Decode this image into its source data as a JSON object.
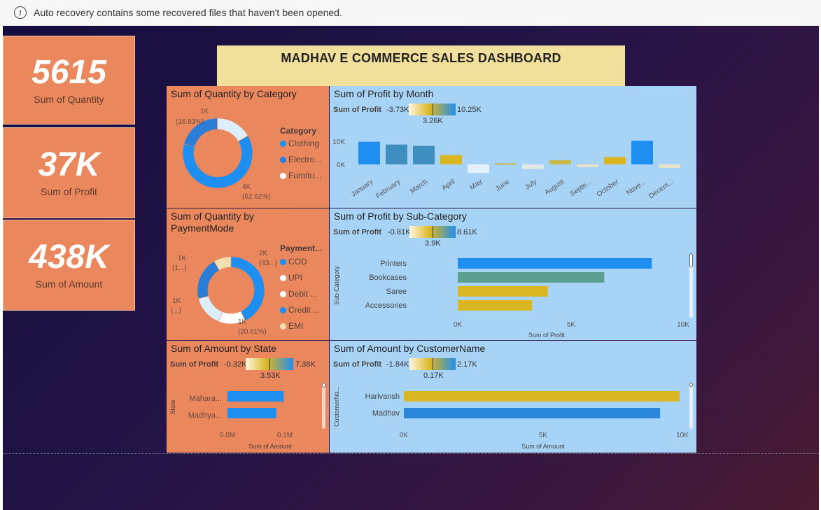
{
  "infobar": {
    "icon": "info-icon",
    "message": "Auto recovery contains some recovered files that haven't been opened."
  },
  "kpis": [
    {
      "value": "5615",
      "label": "Sum of Quantity"
    },
    {
      "value": "37K",
      "label": "Sum of Profit"
    },
    {
      "value": "438K",
      "label": "Sum of Amount"
    }
  ],
  "dashboard_title": "MADHAV E COMMERCE SALES DASHBOARD",
  "colors": {
    "blue": "#1f8ef1",
    "lightblue": "#ddeefb",
    "teal": "#4a9a8a",
    "gold": "#d9b622",
    "orange": "#ea875d"
  },
  "qty_category": {
    "title": "Sum of Quantity by Category",
    "legend_title": "Category",
    "legend": [
      "Clothing",
      "Electro...",
      "Furnitu..."
    ],
    "labels": {
      "top_value": "1K",
      "top_pct": "(16.83%)",
      "bottom_value": "4K",
      "bottom_pct": "(62.62%)"
    }
  },
  "qty_payment": {
    "title_line1": "Sum of Quantity by",
    "title_line2": "PaymentMode",
    "legend_title": "Payment...",
    "legend": [
      "COD",
      "UPI",
      "Debit ...",
      "Credit ...",
      "EMI"
    ],
    "labels": {
      "a_value": "2K",
      "a_pct": "(43...)",
      "b_value": "1K",
      "b_pct": "(1...)",
      "c_value": "1K",
      "c_pct": "(...)",
      "d_value": "1K",
      "d_pct": "(20.61%)"
    }
  },
  "amount_state": {
    "title": "Sum of Amount by State",
    "grad": {
      "label": "Sum of Profit",
      "min": "-0.32K",
      "max": "7.38K",
      "mid": "3.53K"
    },
    "yaxis_title": "State",
    "xaxis_title": "Sum of Amount",
    "categories": [
      "Mahara...",
      "Madhya..."
    ],
    "ticks": [
      "0.0M",
      "0.1M"
    ]
  },
  "profit_month": {
    "title": "Sum of Profit by Month",
    "grad": {
      "label": "Sum of Profit",
      "min": "-3.73K",
      "max": "10.25K",
      "mid": "3.26K"
    },
    "yticks": [
      "10K",
      "0K"
    ],
    "months": [
      "January",
      "February",
      "March",
      "April",
      "May",
      "June",
      "July",
      "August",
      "Septe...",
      "October",
      "Nove...",
      "Decem..."
    ]
  },
  "profit_subcat": {
    "title": "Sum of Profit by Sub-Category",
    "grad": {
      "label": "Sum of Profit",
      "min": "-0.81K",
      "max": "8.61K",
      "mid": "3.9K"
    },
    "yaxis_title": "Sub-Category",
    "xaxis_title": "Sum of Profit",
    "categories": [
      "Printers",
      "Bookcases",
      "Saree",
      "Accessories"
    ],
    "ticks": [
      "0K",
      "5K",
      "10K"
    ]
  },
  "amount_customer": {
    "title": "Sum of Amount by CustomerName",
    "grad": {
      "label": "Sum of Profit",
      "min": "-1.84K",
      "max": "2.17K",
      "mid": "0.17K"
    },
    "yaxis_title": "CustomerNa...",
    "xaxis_title": "Sum of Amount",
    "categories": [
      "Harivansh",
      "Madhav"
    ],
    "ticks": [
      "0K",
      "5K",
      "10K"
    ]
  },
  "chart_data": [
    {
      "type": "pie",
      "title": "Sum of Quantity by Category",
      "categories": [
        "Clothing",
        "Electronics",
        "Furniture"
      ],
      "values": [
        62.62,
        20.55,
        16.83
      ],
      "unit": "%"
    },
    {
      "type": "pie",
      "title": "Sum of Quantity by PaymentMode",
      "categories": [
        "COD",
        "UPI",
        "Debit Card",
        "Credit Card",
        "EMI"
      ],
      "values": [
        43,
        13,
        15,
        20.61,
        8.39
      ],
      "unit": "%"
    },
    {
      "type": "bar",
      "orientation": "horizontal",
      "title": "Sum of Amount by State",
      "categories": [
        "Maharashtra",
        "Madhya Pradesh"
      ],
      "values": [
        0.098,
        0.085
      ],
      "xlabel": "Sum of Amount",
      "ylabel": "State",
      "xlim": [
        0,
        0.12
      ],
      "unit": "M"
    },
    {
      "type": "bar",
      "title": "Sum of Profit by Month",
      "categories": [
        "January",
        "February",
        "March",
        "April",
        "May",
        "June",
        "July",
        "August",
        "September",
        "October",
        "November",
        "December"
      ],
      "values": [
        9.8,
        8.6,
        8.0,
        4.0,
        -3.73,
        0.5,
        -2.0,
        1.8,
        -1.2,
        3.2,
        10.25,
        -1.5
      ],
      "ylim": [
        -4,
        12
      ],
      "unit": "K"
    },
    {
      "type": "bar",
      "orientation": "horizontal",
      "title": "Sum of Profit by Sub-Category",
      "categories": [
        "Printers",
        "Bookcases",
        "Saree",
        "Accessories"
      ],
      "values": [
        8.61,
        6.5,
        4.0,
        3.3
      ],
      "xlabel": "Sum of Profit",
      "ylabel": "Sub-Category",
      "xlim": [
        0,
        10
      ],
      "unit": "K"
    },
    {
      "type": "bar",
      "orientation": "horizontal",
      "title": "Sum of Amount by CustomerName",
      "categories": [
        "Harivansh",
        "Madhav"
      ],
      "values": [
        10.0,
        9.3
      ],
      "xlabel": "Sum of Amount",
      "ylabel": "CustomerName",
      "xlim": [
        0,
        10
      ],
      "unit": "K"
    }
  ]
}
